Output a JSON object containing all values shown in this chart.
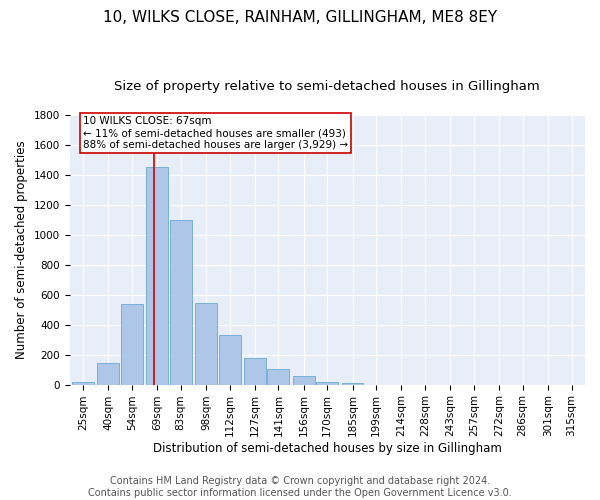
{
  "title": "10, WILKS CLOSE, RAINHAM, GILLINGHAM, ME8 8EY",
  "subtitle": "Size of property relative to semi-detached houses in Gillingham",
  "xlabel": "Distribution of semi-detached houses by size in Gillingham",
  "ylabel": "Number of semi-detached properties",
  "categories": [
    "25sqm",
    "40sqm",
    "54sqm",
    "69sqm",
    "83sqm",
    "98sqm",
    "112sqm",
    "127sqm",
    "141sqm",
    "156sqm",
    "170sqm",
    "185sqm",
    "199sqm",
    "214sqm",
    "228sqm",
    "243sqm",
    "257sqm",
    "272sqm",
    "286sqm",
    "301sqm",
    "315sqm"
  ],
  "values": [
    15,
    145,
    540,
    1450,
    1100,
    545,
    330,
    180,
    105,
    55,
    15,
    10,
    0,
    0,
    0,
    0,
    0,
    0,
    0,
    0,
    0
  ],
  "bar_color": "#aec6e8",
  "bar_edge_color": "#6aaad4",
  "property_line_label": "10 WILKS CLOSE: 67sqm",
  "annotation_line1": "← 11% of semi-detached houses are smaller (493)",
  "annotation_line2": "88% of semi-detached houses are larger (3,929) →",
  "line_color": "#cc0000",
  "box_color": "#cc0000",
  "ylim": [
    0,
    1800
  ],
  "yticks": [
    0,
    200,
    400,
    600,
    800,
    1000,
    1200,
    1400,
    1600,
    1800
  ],
  "footer_line1": "Contains HM Land Registry data © Crown copyright and database right 2024.",
  "footer_line2": "Contains public sector information licensed under the Open Government Licence v3.0.",
  "property_sqm": 67,
  "background_color": "#e8eef8",
  "title_fontsize": 11,
  "subtitle_fontsize": 9.5,
  "axis_label_fontsize": 8.5,
  "tick_fontsize": 7.5,
  "footer_fontsize": 7,
  "annotation_fontsize": 7.5
}
